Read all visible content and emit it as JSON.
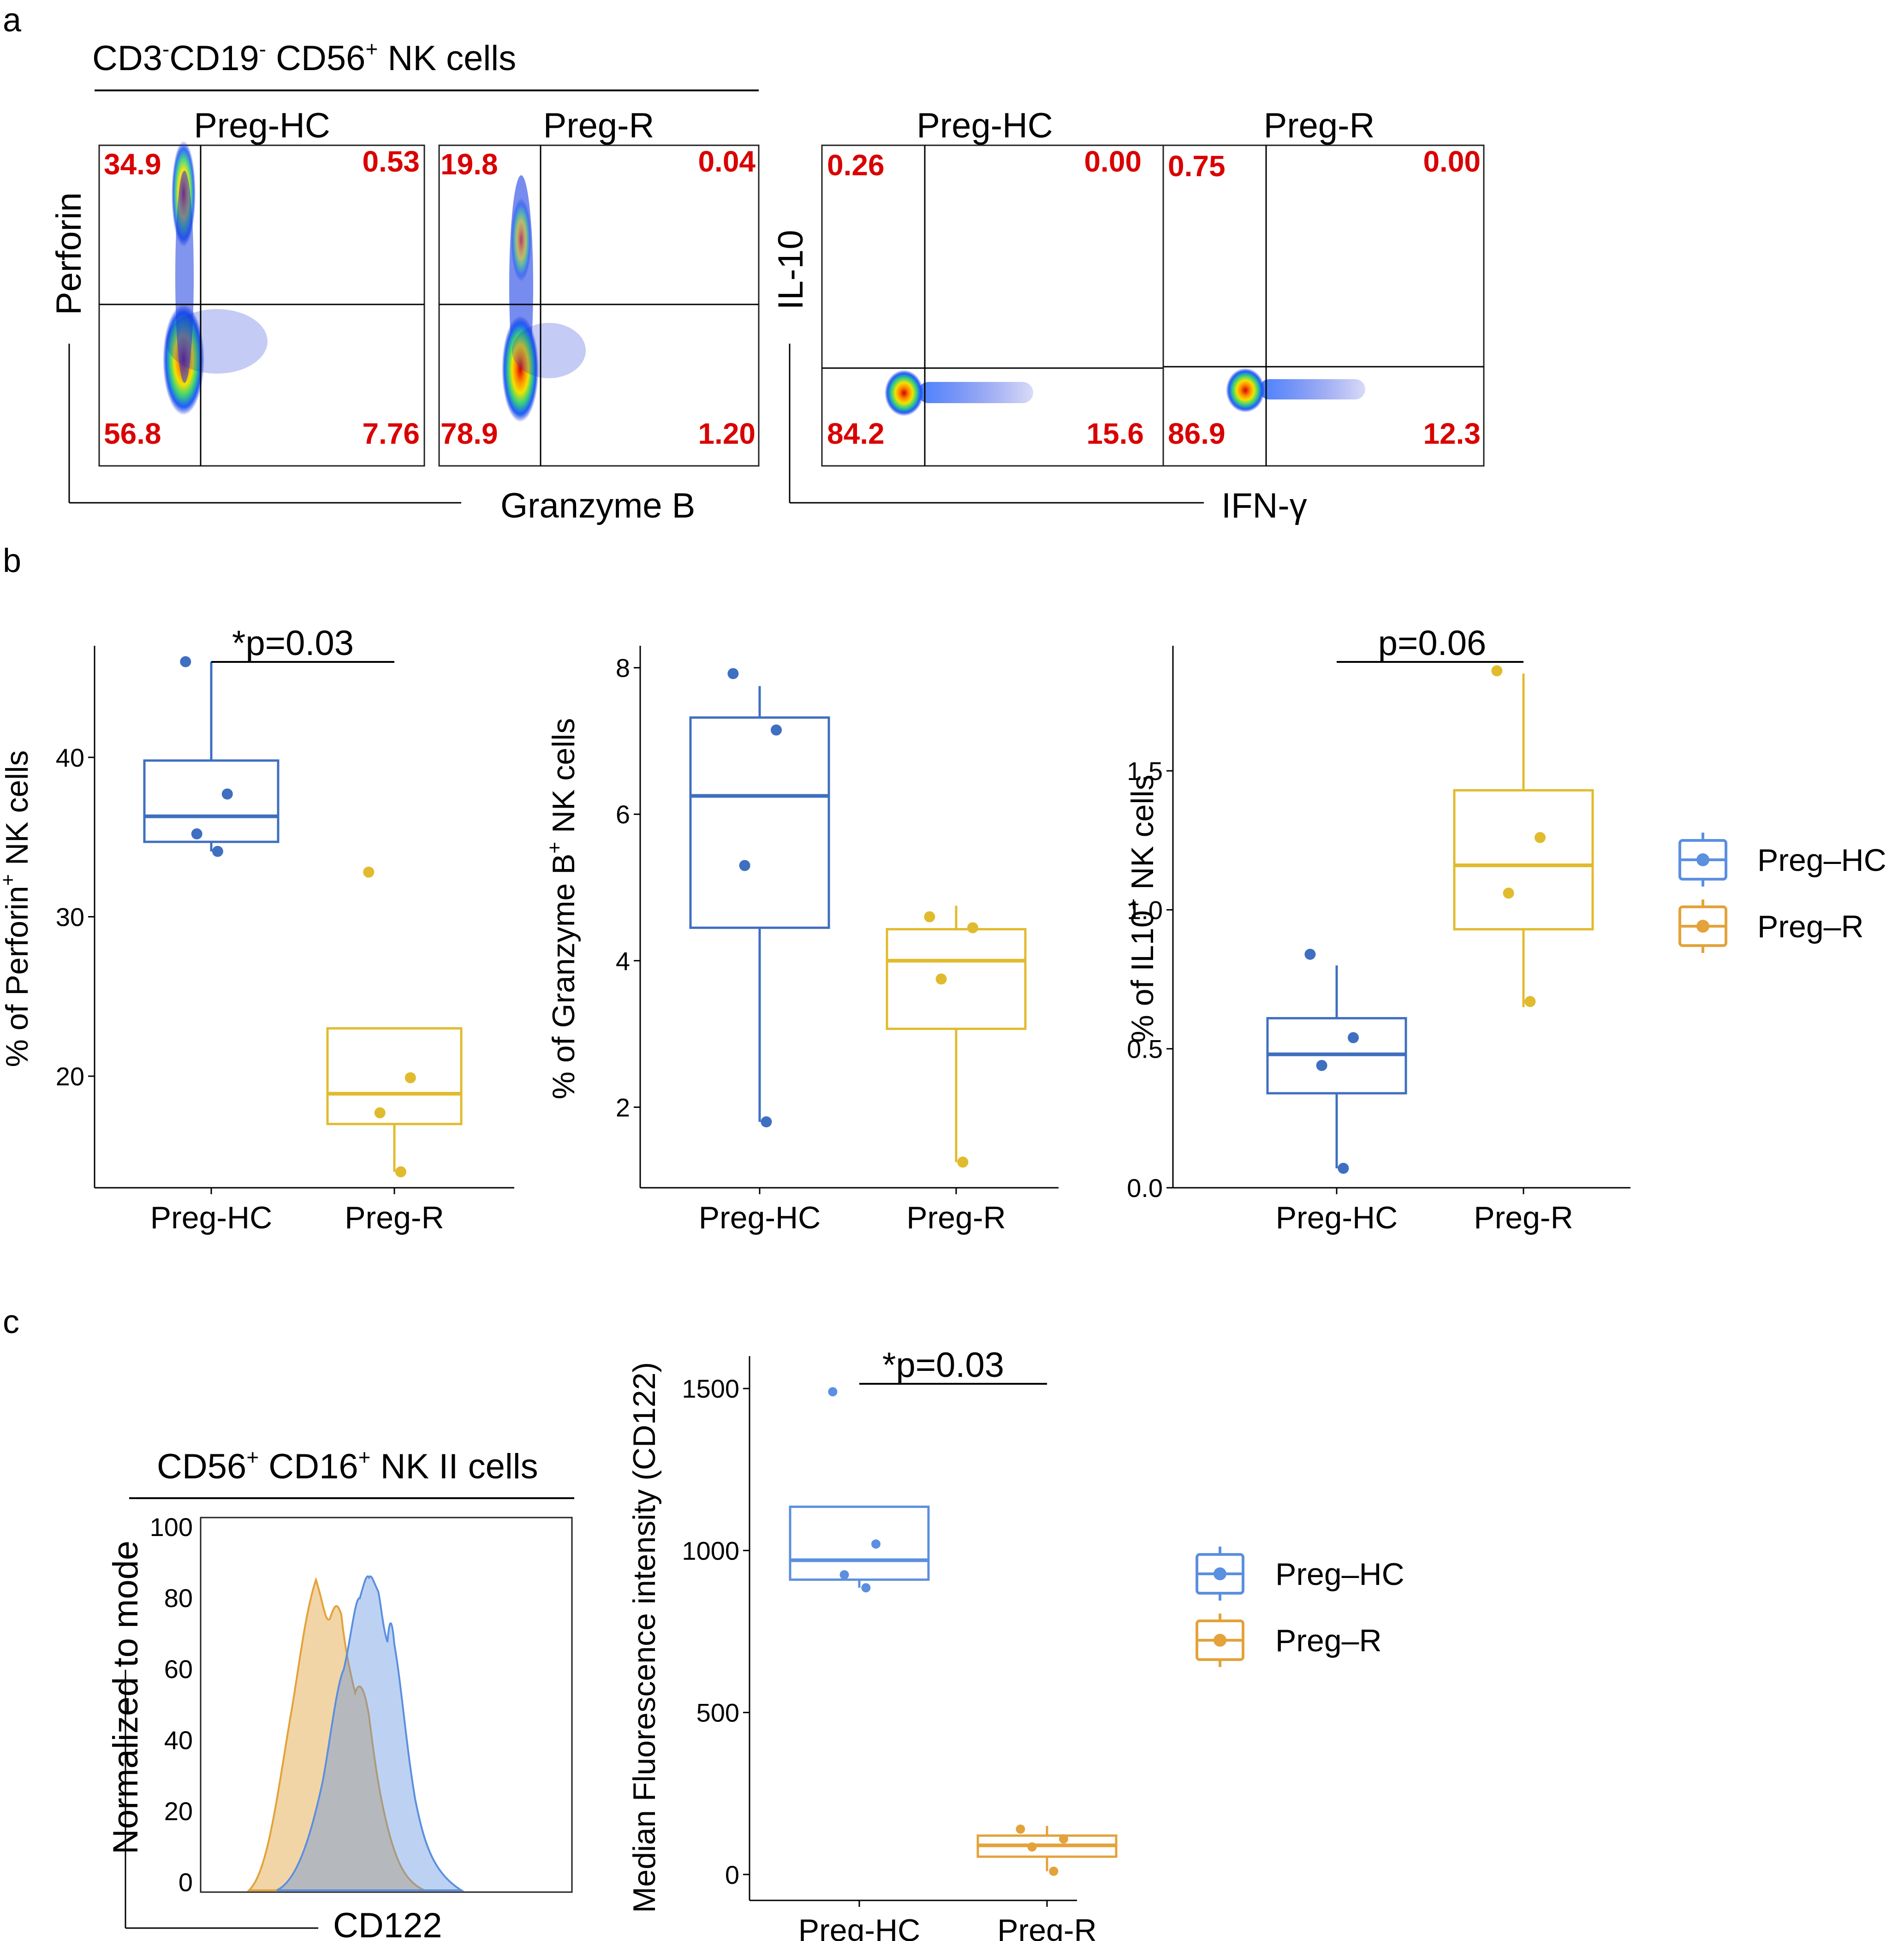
{
  "panel_labels": {
    "a": "a",
    "b": "b",
    "c": "c"
  },
  "panel_a": {
    "gate_title": "CD3",
    "gate_title_sup1": "-",
    "gate_title_part2": "CD19",
    "gate_title_sup2": "-",
    "gate_title_part3": " CD56",
    "gate_title_sup3": "+",
    "gate_title_part4": " NK cells",
    "left_pair": {
      "y_label": "Perforin",
      "x_label": "Granzyme B",
      "plots": [
        {
          "title": "Preg-HC",
          "q_ul": "34.9",
          "q_ur": "0.53",
          "q_ll": "56.8",
          "q_lr": "7.76"
        },
        {
          "title": "Preg-R",
          "q_ul": "19.8",
          "q_ur": "0.04",
          "q_ll": "78.9",
          "q_lr": "1.20"
        }
      ]
    },
    "right_pair": {
      "y_label": "IL-10",
      "x_label": "IFN-γ",
      "plots": [
        {
          "title": "Preg-HC",
          "q_ul": "0.26",
          "q_ur": "0.00",
          "q_ll": "84.2",
          "q_lr": "15.6"
        },
        {
          "title": "Preg-R",
          "q_ul": "0.75",
          "q_ur": "0.00",
          "q_ll": "86.9",
          "q_lr": "12.3"
        }
      ]
    }
  },
  "panel_c_hist": {
    "title": "CD56",
    "title_sup1": "+",
    "title_part2": " CD16",
    "title_sup2": "+",
    "title_part3": " NK II cells",
    "y_label": "Normalized to mode",
    "x_label": "CD122",
    "y_ticks": [
      "0",
      "20",
      "40",
      "60",
      "80",
      "100"
    ]
  },
  "legend": {
    "items": [
      {
        "label": "Preg–HC",
        "color": "#5b8fe0"
      },
      {
        "label": "Preg–R",
        "color": "#e3a23a"
      }
    ]
  },
  "colors": {
    "hc_box": "#3f6fc0",
    "r_box": "#e1bb2e",
    "hc_c": "#5b8fe0",
    "r_c": "#e3a23a",
    "quadrant_text": "#d90000"
  },
  "chart_data": [
    {
      "id": "b1",
      "type": "box",
      "title": "",
      "ylabel": "% of Perforin",
      "ylabel_sup": "+",
      "ylabel_tail": " NK cells",
      "categories": [
        "Preg-HC",
        "Preg-R"
      ],
      "ylim": [
        13,
        47
      ],
      "y_ticks": [
        20,
        30,
        40
      ],
      "series": [
        {
          "name": "Preg-HC",
          "q1": 34.7,
          "median": 36.3,
          "q3": 39.8,
          "whisker_low": 34.1,
          "whisker_high": 46.0,
          "points": [
            46.0,
            37.7,
            35.2,
            34.1
          ]
        },
        {
          "name": "Preg-R",
          "q1": 17.0,
          "median": 18.9,
          "q3": 23.0,
          "whisker_low": 14.0,
          "whisker_high": 23.0,
          "points": [
            32.8,
            19.9,
            17.7,
            14.0
          ]
        }
      ],
      "significance": "*p=0.03"
    },
    {
      "id": "b2",
      "type": "box",
      "title": "",
      "ylabel": "% of Granzyme B",
      "ylabel_sup": "+",
      "ylabel_tail": " NK cells",
      "categories": [
        "Preg-HC",
        "Preg-R"
      ],
      "ylim": [
        0.9,
        8.3
      ],
      "y_ticks": [
        2,
        4,
        6,
        8
      ],
      "series": [
        {
          "name": "Preg-HC",
          "q1": 4.45,
          "median": 6.25,
          "q3": 7.32,
          "whisker_low": 1.8,
          "whisker_high": 7.75,
          "points": [
            7.92,
            7.15,
            5.3,
            1.8
          ]
        },
        {
          "name": "Preg-R",
          "q1": 3.07,
          "median": 4.0,
          "q3": 4.43,
          "whisker_low": 1.25,
          "whisker_high": 4.75,
          "points": [
            4.6,
            4.45,
            3.75,
            1.25
          ]
        }
      ],
      "significance": ""
    },
    {
      "id": "b3",
      "type": "box",
      "title": "",
      "ylabel": "% of IL10",
      "ylabel_sup": "+",
      "ylabel_tail": " NK cells",
      "categories": [
        "Preg-HC",
        "Preg-R"
      ],
      "ylim": [
        0,
        1.95
      ],
      "y_ticks": [
        0.0,
        0.5,
        1.0,
        1.5
      ],
      "y_tick_labels": [
        "0.0",
        "0.5",
        "1.0",
        "1.5"
      ],
      "series": [
        {
          "name": "Preg-HC",
          "q1": 0.34,
          "median": 0.48,
          "q3": 0.61,
          "whisker_low": 0.07,
          "whisker_high": 0.8,
          "points": [
            0.84,
            0.54,
            0.44,
            0.07
          ]
        },
        {
          "name": "Preg-R",
          "q1": 0.93,
          "median": 1.16,
          "q3": 1.43,
          "whisker_low": 0.65,
          "whisker_high": 1.85,
          "points": [
            1.86,
            1.26,
            1.06,
            0.67
          ]
        }
      ],
      "significance": "p=0.06"
    },
    {
      "id": "c2",
      "type": "box",
      "title": "",
      "ylabel": "Median Fluorescence intensity (CD122)",
      "categories": [
        "Preg-HC",
        "Preg-R"
      ],
      "ylim": [
        -80,
        1600
      ],
      "y_ticks": [
        0,
        500,
        1000,
        1500
      ],
      "series": [
        {
          "name": "Preg-HC",
          "q1": 910,
          "median": 970,
          "q3": 1135,
          "whisker_low": 885,
          "whisker_high": 1135,
          "points": [
            1490,
            1020,
            925,
            885
          ]
        },
        {
          "name": "Preg-R",
          "q1": 55,
          "median": 90,
          "q3": 120,
          "whisker_low": 10,
          "whisker_high": 150,
          "points": [
            140,
            110,
            85,
            10
          ]
        }
      ],
      "significance": "*p=0.03"
    }
  ]
}
